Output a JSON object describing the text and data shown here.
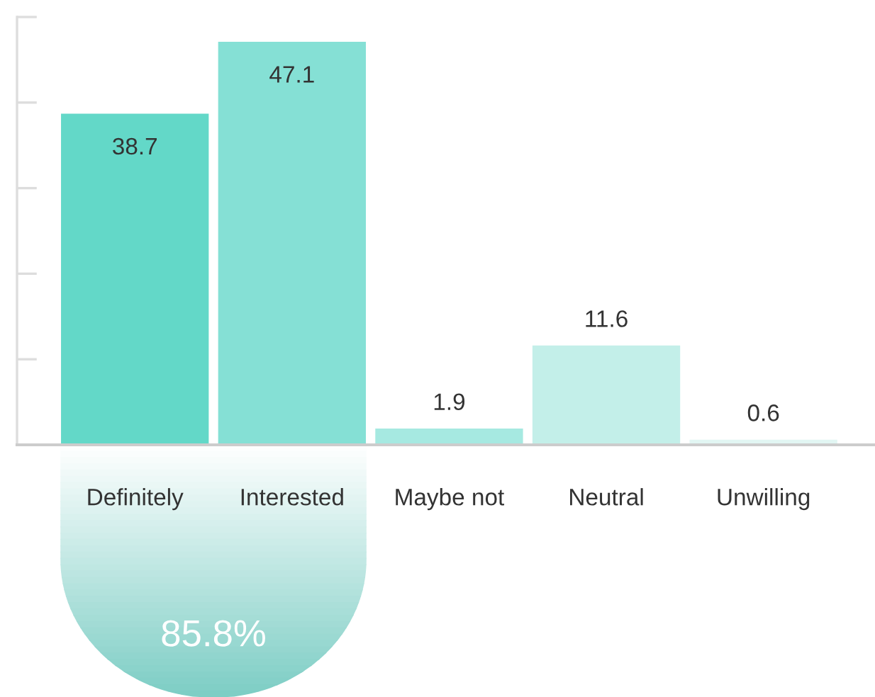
{
  "chart_data": {
    "type": "bar",
    "categories": [
      "Definitely",
      "Interested",
      "Maybe not",
      "Neutral",
      "Unwilling"
    ],
    "values": [
      38.7,
      47.1,
      1.9,
      11.6,
      0.6
    ],
    "colors": [
      "#63d8c8",
      "#85e0d5",
      "#a6e9e1",
      "#c3efe9",
      "#e2f6f3"
    ],
    "ylim": [
      0,
      50
    ],
    "yticks": [
      {
        "value": 0,
        "label": null
      },
      {
        "value": 10,
        "label": null
      },
      {
        "value": 20,
        "label": null
      },
      {
        "value": 30,
        "label": null
      },
      {
        "value": 40,
        "label": null
      },
      {
        "value": 50,
        "label": null
      }
    ],
    "tick_labels": "x",
    "data_labels": true,
    "grid": false,
    "annotations": [
      "85.8%"
    ]
  }
}
